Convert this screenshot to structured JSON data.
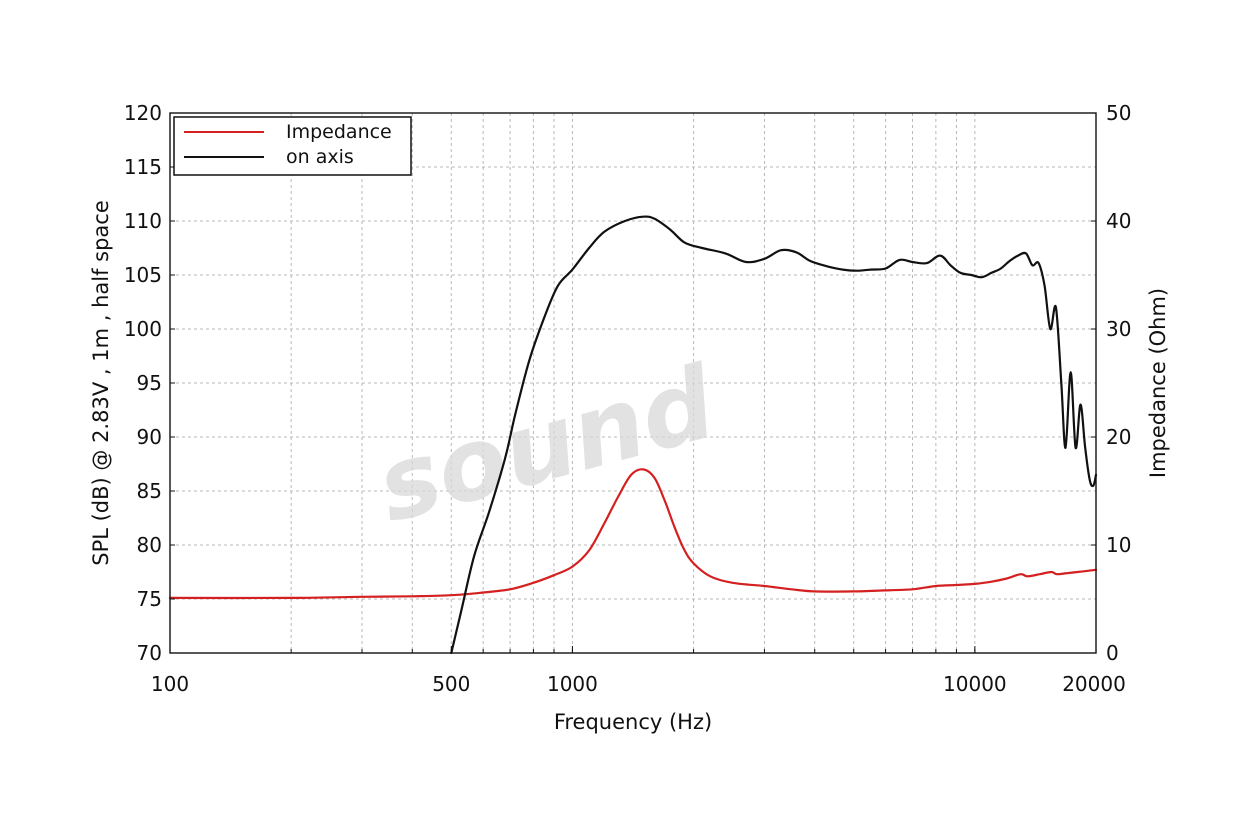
{
  "chart_data": {
    "type": "line",
    "xlabel": "Frequency (Hz)",
    "ylabel": "SPL (dB) @ 2.83V , 1m , half space",
    "y2label": "Impedance (Ohm)",
    "xscale": "log",
    "xlim": [
      100,
      20000
    ],
    "ylim": [
      70,
      120
    ],
    "y2lim": [
      0,
      50
    ],
    "x_tick_labels": [
      "100",
      "500",
      "1000",
      "10000",
      "20000"
    ],
    "x_ticks": [
      100,
      500,
      1000,
      10000,
      20000
    ],
    "y_ticks": [
      70,
      75,
      80,
      85,
      90,
      95,
      100,
      105,
      110,
      115,
      120
    ],
    "y_tick_labels": [
      "70",
      "75",
      "80",
      "85",
      "90",
      "95",
      "100",
      "105",
      "110",
      "115",
      "120"
    ],
    "y2_ticks": [
      0,
      10,
      20,
      30,
      40,
      50
    ],
    "y2_tick_labels": [
      "0",
      "10",
      "20",
      "30",
      "40",
      "50"
    ],
    "grid": true,
    "legend_position": "top-left",
    "watermark": "sound",
    "series": [
      {
        "name": "Impedance",
        "axis": "right",
        "color": "#d42020",
        "points": [
          [
            100,
            5.1
          ],
          [
            200,
            5.1
          ],
          [
            300,
            5.2
          ],
          [
            400,
            5.25
          ],
          [
            500,
            5.35
          ],
          [
            600,
            5.6
          ],
          [
            700,
            5.9
          ],
          [
            800,
            6.5
          ],
          [
            900,
            7.2
          ],
          [
            1000,
            8.0
          ],
          [
            1100,
            9.5
          ],
          [
            1200,
            12.0
          ],
          [
            1300,
            14.5
          ],
          [
            1400,
            16.5
          ],
          [
            1500,
            17.0
          ],
          [
            1600,
            16.2
          ],
          [
            1700,
            14.0
          ],
          [
            1800,
            11.5
          ],
          [
            1900,
            9.5
          ],
          [
            2000,
            8.3
          ],
          [
            2200,
            7.1
          ],
          [
            2500,
            6.5
          ],
          [
            3000,
            6.2
          ],
          [
            3500,
            5.9
          ],
          [
            4000,
            5.7
          ],
          [
            5000,
            5.7
          ],
          [
            6000,
            5.8
          ],
          [
            7000,
            5.9
          ],
          [
            8000,
            6.2
          ],
          [
            9000,
            6.3
          ],
          [
            10000,
            6.4
          ],
          [
            11000,
            6.6
          ],
          [
            12000,
            6.9
          ],
          [
            13000,
            7.3
          ],
          [
            13500,
            7.1
          ],
          [
            14500,
            7.3
          ],
          [
            15500,
            7.5
          ],
          [
            16000,
            7.3
          ],
          [
            17000,
            7.4
          ],
          [
            18000,
            7.5
          ],
          [
            20000,
            7.7
          ]
        ]
      },
      {
        "name": "on axis",
        "axis": "left",
        "color": "#111111",
        "points": [
          [
            500,
            70
          ],
          [
            530,
            74
          ],
          [
            570,
            79
          ],
          [
            620,
            83
          ],
          [
            680,
            88
          ],
          [
            720,
            92
          ],
          [
            780,
            97
          ],
          [
            850,
            101
          ],
          [
            920,
            104
          ],
          [
            1000,
            105.5
          ],
          [
            1100,
            107.5
          ],
          [
            1200,
            109
          ],
          [
            1350,
            110
          ],
          [
            1500,
            110.4
          ],
          [
            1600,
            110.2
          ],
          [
            1750,
            109.2
          ],
          [
            1900,
            108
          ],
          [
            2100,
            107.5
          ],
          [
            2400,
            107
          ],
          [
            2700,
            106.2
          ],
          [
            3000,
            106.5
          ],
          [
            3300,
            107.3
          ],
          [
            3600,
            107.1
          ],
          [
            3900,
            106.3
          ],
          [
            4300,
            105.8
          ],
          [
            4700,
            105.5
          ],
          [
            5100,
            105.4
          ],
          [
            5500,
            105.5
          ],
          [
            6000,
            105.6
          ],
          [
            6500,
            106.4
          ],
          [
            7000,
            106.2
          ],
          [
            7600,
            106.1
          ],
          [
            8200,
            106.8
          ],
          [
            8700,
            105.9
          ],
          [
            9200,
            105.2
          ],
          [
            9800,
            105.0
          ],
          [
            10400,
            104.8
          ],
          [
            11000,
            105.2
          ],
          [
            11600,
            105.6
          ],
          [
            12200,
            106.3
          ],
          [
            12800,
            106.8
          ],
          [
            13400,
            107.0
          ],
          [
            13900,
            105.9
          ],
          [
            14400,
            106.1
          ],
          [
            14900,
            104.0
          ],
          [
            15400,
            100.0
          ],
          [
            15900,
            102.0
          ],
          [
            16400,
            95.0
          ],
          [
            16800,
            89.0
          ],
          [
            17300,
            96.0
          ],
          [
            17800,
            89.0
          ],
          [
            18300,
            93.0
          ],
          [
            18800,
            89.0
          ],
          [
            19300,
            86.0
          ],
          [
            19700,
            85.5
          ],
          [
            20000,
            86.5
          ]
        ]
      }
    ]
  }
}
